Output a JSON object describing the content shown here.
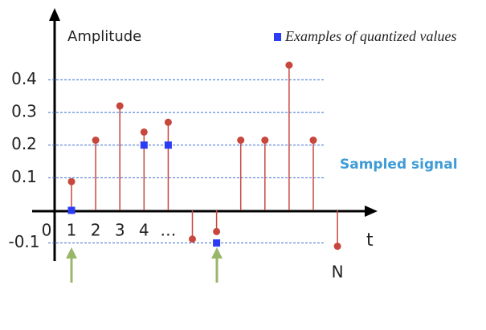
{
  "chart_data": {
    "type": "stem",
    "y_label": "Amplitude",
    "x_label": "t",
    "origin_label": "0",
    "annotation": "Sampled signal",
    "categories": [
      "1",
      "2",
      "3",
      "4",
      "…",
      null,
      null,
      null,
      null,
      null,
      null,
      "N"
    ],
    "series": [
      {
        "name": "Sampled signal",
        "color": "#c8473d",
        "values": [
          0.088,
          0.215,
          0.32,
          0.24,
          0.27,
          -0.088,
          -0.065,
          0.215,
          0.215,
          0.445,
          0.215,
          -0.11
        ]
      },
      {
        "name": "Examples of quantized values",
        "color": "#2a3cf5",
        "values": [
          0,
          null,
          null,
          0.2,
          0.2,
          null,
          -0.1,
          null,
          null,
          null,
          null,
          null
        ]
      }
    ],
    "ylim": [
      -0.155,
      0.62
    ],
    "yticks": [
      -0.1,
      0.1,
      0.2,
      0.3,
      0.4
    ],
    "grid": true
  }
}
